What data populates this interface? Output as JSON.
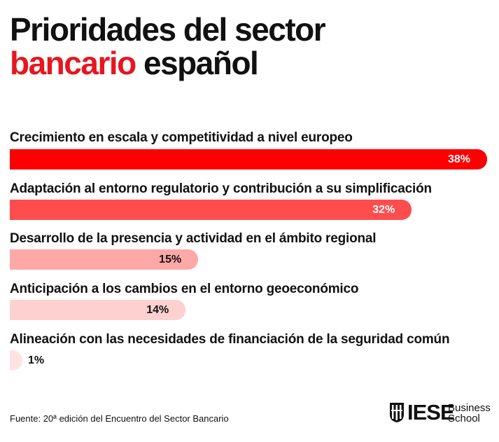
{
  "title": {
    "line1": "Prioridades del sector",
    "accent": "bancario",
    "rest": "español"
  },
  "colors": {
    "accent": "#e5171f"
  },
  "chart_data": {
    "type": "bar",
    "orientation": "horizontal",
    "categories": [
      "Crecimiento en escala y competitividad a nivel europeo",
      "Adaptación al entorno regulatorio y contribución a su simplificación",
      "Desarrollo de la presencia y actividad en el ámbito regional",
      "Anticipación a los cambios en el entorno geoeconómico",
      "Alineación con las necesidades de financiación de la seguridad común"
    ],
    "values": [
      38,
      32,
      15,
      14,
      1
    ],
    "value_labels": [
      "38%",
      "32%",
      "15%",
      "14%",
      "1%"
    ],
    "bar_colors": [
      "#ff0000",
      "#ff4d4d",
      "#ffa8a8",
      "#ffd0d0",
      "#ffe3e3"
    ],
    "label_colors": [
      "#ffffff",
      "#ffffff",
      "#111111",
      "#111111",
      "#111111"
    ],
    "xlim": [
      0,
      38
    ],
    "grid": false
  },
  "source": "Fuente: 20ª edición del Encuentro del Sector Bancario",
  "logo": {
    "word": "IESE",
    "line1": "Business",
    "line2": "School"
  }
}
